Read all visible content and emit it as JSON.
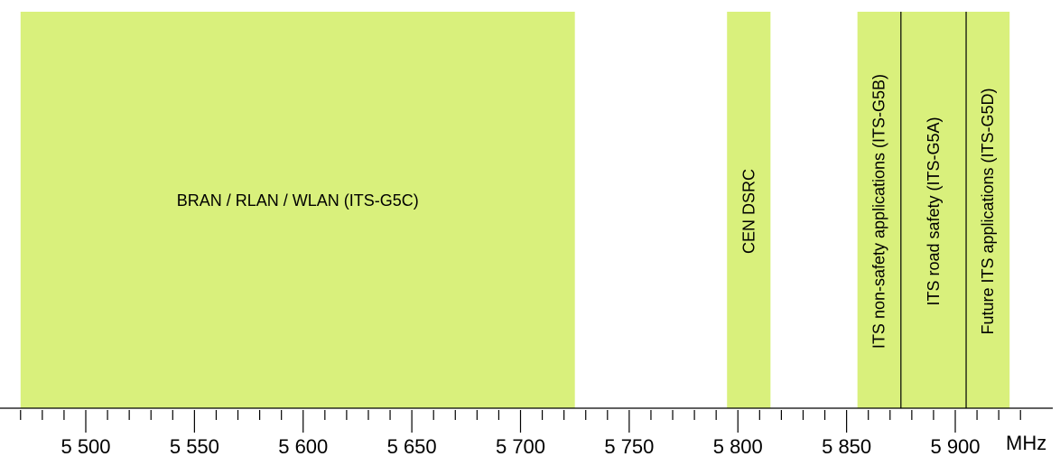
{
  "chart_data": {
    "type": "band-allocation",
    "unit": "MHz",
    "xlim": [
      5470,
      5925
    ],
    "band_color": "#d9f07c",
    "bands": [
      {
        "id": "bran",
        "start": 5470,
        "end": 5725,
        "label": "BRAN / RLAN / WLAN (ITS-G5C)",
        "orientation": "horizontal"
      },
      {
        "id": "cen-dsrc",
        "start": 5795,
        "end": 5815,
        "label": "CEN DSRC",
        "orientation": "vertical"
      },
      {
        "id": "its-g5b",
        "start": 5855,
        "end": 5875,
        "label": "ITS non-safety applications (ITS-G5B)",
        "orientation": "vertical"
      },
      {
        "id": "its-g5a",
        "start": 5875,
        "end": 5905,
        "label": "ITS road safety (ITS-G5A)",
        "orientation": "vertical"
      },
      {
        "id": "its-g5d",
        "start": 5905,
        "end": 5925,
        "label": "Future ITS applications (ITS-G5D)",
        "orientation": "vertical"
      }
    ],
    "dividers": [
      5875,
      5905
    ],
    "major_ticks": [
      {
        "value": 5500,
        "label": "5 500"
      },
      {
        "value": 5550,
        "label": "5 550"
      },
      {
        "value": 5600,
        "label": "5 600"
      },
      {
        "value": 5650,
        "label": "5 650"
      },
      {
        "value": 5700,
        "label": "5 700"
      },
      {
        "value": 5750,
        "label": "5 750"
      },
      {
        "value": 5800,
        "label": "5 800"
      },
      {
        "value": 5850,
        "label": "5 850"
      },
      {
        "value": 5900,
        "label": "5 900"
      }
    ],
    "minor_tick_step": 10
  }
}
